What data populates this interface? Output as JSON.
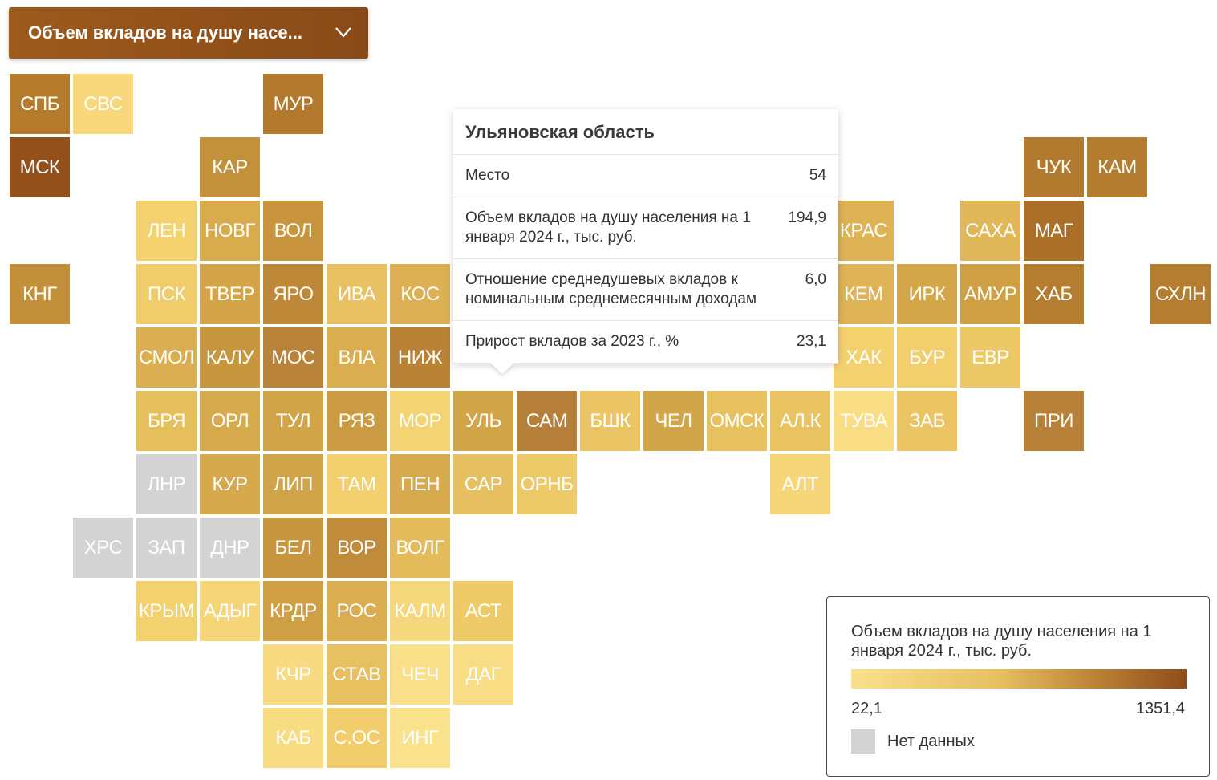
{
  "dropdown": {
    "label": "Объем вкладов на душу насе..."
  },
  "tiles": [
    {
      "label": "СПБ",
      "row": 0,
      "col": 0,
      "color": "#b57c2e"
    },
    {
      "label": "СВС",
      "row": 0,
      "col": 1,
      "color": "#f8d87b"
    },
    {
      "label": "МУР",
      "row": 0,
      "col": 4,
      "color": "#b37a2e"
    },
    {
      "label": "МСК",
      "row": 1,
      "col": 0,
      "color": "#94501a"
    },
    {
      "label": "КАР",
      "row": 1,
      "col": 3,
      "color": "#c3913a"
    },
    {
      "label": "ЧУК",
      "row": 1,
      "col": 16,
      "color": "#b27a2e"
    },
    {
      "label": "КАМ",
      "row": 1,
      "col": 17,
      "color": "#b47c2f"
    },
    {
      "label": "ЛЕН",
      "row": 2,
      "col": 2,
      "color": "#f4d270"
    },
    {
      "label": "НОВГ",
      "row": 2,
      "col": 3,
      "color": "#d8ab4d"
    },
    {
      "label": "ВОЛ",
      "row": 2,
      "col": 4,
      "color": "#c8953e"
    },
    {
      "label": "КРАС",
      "row": 2,
      "col": 13,
      "color": "#ddb356"
    },
    {
      "label": "САХА",
      "row": 2,
      "col": 15,
      "color": "#e0b85a"
    },
    {
      "label": "МАГ",
      "row": 2,
      "col": 16,
      "color": "#ac6f27"
    },
    {
      "label": "КНГ",
      "row": 3,
      "col": 0,
      "color": "#c2903b"
    },
    {
      "label": "ПСК",
      "row": 3,
      "col": 2,
      "color": "#f0cd6a"
    },
    {
      "label": "ТВЕР",
      "row": 3,
      "col": 3,
      "color": "#d3a548"
    },
    {
      "label": "ЯРО",
      "row": 3,
      "col": 4,
      "color": "#bd8838"
    },
    {
      "label": "ИВА",
      "row": 3,
      "col": 5,
      "color": "#e8c262"
    },
    {
      "label": "КОС",
      "row": 3,
      "col": 6,
      "color": "#dcb053"
    },
    {
      "label": "КЕМ",
      "row": 3,
      "col": 13,
      "color": "#deb457"
    },
    {
      "label": "ИРК",
      "row": 3,
      "col": 14,
      "color": "#d3a649"
    },
    {
      "label": "АМУР",
      "row": 3,
      "col": 15,
      "color": "#cf9f44"
    },
    {
      "label": "ХАБ",
      "row": 3,
      "col": 16,
      "color": "#b57d2f"
    },
    {
      "label": "СХЛН",
      "row": 3,
      "col": 18,
      "color": "#b57d30"
    },
    {
      "label": "СМОЛ",
      "row": 4,
      "col": 2,
      "color": "#dbae51"
    },
    {
      "label": "КАЛУ",
      "row": 4,
      "col": 3,
      "color": "#c8963f"
    },
    {
      "label": "МОС",
      "row": 4,
      "col": 4,
      "color": "#b9843a"
    },
    {
      "label": "ВЛА",
      "row": 4,
      "col": 5,
      "color": "#d9ad50"
    },
    {
      "label": "НИЖ",
      "row": 4,
      "col": 6,
      "color": "#b98336"
    },
    {
      "label": "ХАК",
      "row": 4,
      "col": 13,
      "color": "#f4d16f"
    },
    {
      "label": "БУР",
      "row": 4,
      "col": 14,
      "color": "#f2cf6c"
    },
    {
      "label": "ЕВР",
      "row": 4,
      "col": 15,
      "color": "#edc866"
    },
    {
      "label": "БРЯ",
      "row": 5,
      "col": 2,
      "color": "#e6bf5d"
    },
    {
      "label": "ОРЛ",
      "row": 5,
      "col": 3,
      "color": "#d7aa4d"
    },
    {
      "label": "ТУЛ",
      "row": 5,
      "col": 4,
      "color": "#d2a448"
    },
    {
      "label": "РЯЗ",
      "row": 5,
      "col": 5,
      "color": "#cb9b43"
    },
    {
      "label": "МОР",
      "row": 5,
      "col": 6,
      "color": "#f4d472"
    },
    {
      "label": "УЛЬ",
      "row": 5,
      "col": 7,
      "color": "#d2a549"
    },
    {
      "label": "САМ",
      "row": 5,
      "col": 8,
      "color": "#b7803a"
    },
    {
      "label": "БШК",
      "row": 5,
      "col": 9,
      "color": "#ebc564"
    },
    {
      "label": "ЧЕЛ",
      "row": 5,
      "col": 10,
      "color": "#d2a549"
    },
    {
      "label": "ОМСК",
      "row": 5,
      "col": 11,
      "color": "#e7c060"
    },
    {
      "label": "АЛ.К",
      "row": 5,
      "col": 12,
      "color": "#e9c361"
    },
    {
      "label": "ТУВА",
      "row": 5,
      "col": 13,
      "color": "#f9dd84"
    },
    {
      "label": "ЗАБ",
      "row": 5,
      "col": 14,
      "color": "#ebc564"
    },
    {
      "label": "ПРИ",
      "row": 5,
      "col": 16,
      "color": "#b8813a"
    },
    {
      "label": "ЛНР",
      "row": 6,
      "col": 2,
      "color": "#d3d3d3"
    },
    {
      "label": "КУР",
      "row": 6,
      "col": 3,
      "color": "#d6a94c"
    },
    {
      "label": "ЛИП",
      "row": 6,
      "col": 4,
      "color": "#d2a449"
    },
    {
      "label": "ТАМ",
      "row": 6,
      "col": 5,
      "color": "#f3d06d"
    },
    {
      "label": "ПЕН",
      "row": 6,
      "col": 6,
      "color": "#d7aa4d"
    },
    {
      "label": "САР",
      "row": 6,
      "col": 7,
      "color": "#e6c060"
    },
    {
      "label": "ОРНБ",
      "row": 6,
      "col": 8,
      "color": "#eec968"
    },
    {
      "label": "АЛТ",
      "row": 6,
      "col": 12,
      "color": "#f6d679"
    },
    {
      "label": "ХРС",
      "row": 7,
      "col": 1,
      "color": "#d3d3d3"
    },
    {
      "label": "ЗАП",
      "row": 7,
      "col": 2,
      "color": "#d3d3d3"
    },
    {
      "label": "ДНР",
      "row": 7,
      "col": 3,
      "color": "#d3d3d3"
    },
    {
      "label": "БЕЛ",
      "row": 7,
      "col": 4,
      "color": "#c8963f"
    },
    {
      "label": "ВОР",
      "row": 7,
      "col": 5,
      "color": "#c08b3a"
    },
    {
      "label": "ВОЛГ",
      "row": 7,
      "col": 6,
      "color": "#e3bb5b"
    },
    {
      "label": "КРЫМ",
      "row": 8,
      "col": 2,
      "color": "#f3d16e"
    },
    {
      "label": "АДЫГ",
      "row": 8,
      "col": 3,
      "color": "#f5d577"
    },
    {
      "label": "КРДР",
      "row": 8,
      "col": 4,
      "color": "#cf9f44"
    },
    {
      "label": "РОС",
      "row": 8,
      "col": 5,
      "color": "#d9ad50"
    },
    {
      "label": "КАЛМ",
      "row": 8,
      "col": 6,
      "color": "#f6d87c"
    },
    {
      "label": "АСТ",
      "row": 8,
      "col": 7,
      "color": "#efca69"
    },
    {
      "label": "КЧР",
      "row": 9,
      "col": 4,
      "color": "#f8db80"
    },
    {
      "label": "СТАВ",
      "row": 9,
      "col": 5,
      "color": "#e7c060"
    },
    {
      "label": "ЧЕЧ",
      "row": 9,
      "col": 6,
      "color": "#fae089"
    },
    {
      "label": "ДАГ",
      "row": 9,
      "col": 7,
      "color": "#f9dd85"
    },
    {
      "label": "КАБ",
      "row": 10,
      "col": 4,
      "color": "#f8dc82"
    },
    {
      "label": "С.ОС",
      "row": 10,
      "col": 5,
      "color": "#f1cd6b"
    },
    {
      "label": "ИНГ",
      "row": 10,
      "col": 6,
      "color": "#fae18b"
    }
  ],
  "tooltip": {
    "title": "Ульяновская область",
    "rows": [
      {
        "label": "Место",
        "value": "54"
      },
      {
        "label": "Объем вкладов на душу населения на 1 января 2024 г., тыс. руб.",
        "value": "194,9"
      },
      {
        "label": "Отношение среднедушевых вкладов к номинальным среднемесячным доходам",
        "value": "6,0"
      },
      {
        "label": "Прирост вкладов за 2023 г., %",
        "value": "23,1"
      }
    ]
  },
  "legend": {
    "title": "Объем вкладов на душу населения на 1 января 2024 г., тыс. руб.",
    "min": "22,1",
    "max": "1351,4",
    "color_low": "#fae08c",
    "color_high": "#8f4c1a",
    "na_label": "Нет данных",
    "na_color": "#d3d3d3"
  }
}
